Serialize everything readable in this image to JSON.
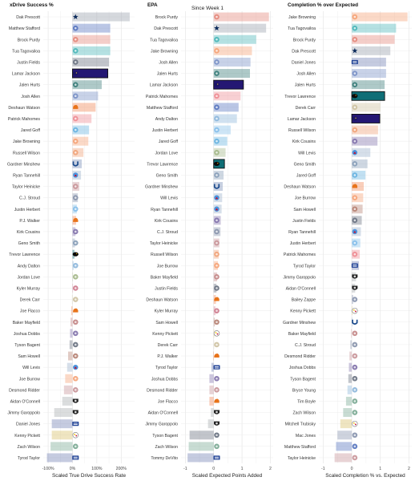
{
  "subtitle": "Since Week 1",
  "team_colors": {
    "DAL": "#9aa3ad",
    "LA": "#5b78c0",
    "SF": "#e58b7f",
    "MIA": "#4fb7b9",
    "CHI": "#6d7584",
    "BAL": "#241773",
    "PHI": "#3d7f7c",
    "BUF": "#7d94c7",
    "HOU": "#8a96ad",
    "KC": "#ee8e96",
    "DET": "#6cb4e0",
    "CIN": "#f5a57a",
    "SEA": "#8aa0b9",
    "JAX": "#0f6e76",
    "IND": "#7a8fb8",
    "TEN": "#9db3cc",
    "LAC": "#89c0ea",
    "NYJ": "#7cab95",
    "LV": "#a9adb1",
    "NO": "#cfc3a3",
    "CLE": "#f08b5a",
    "ARI": "#d08091",
    "GB": "#a7b98c",
    "WAS": "#b88577",
    "TB": "#c58a8a",
    "ATL": "#c9979b",
    "NYG": "#7583b5",
    "PIT": "#d9c16b",
    "CAR": "#8fb8dc",
    "NE": "#8b97b0",
    "DEN": "#f0a57c",
    "MIN": "#8576ad"
  },
  "logo_icons": {
    "DAL": "star-icon",
    "BAL": "raven-icon",
    "JAX": "jaguar-icon",
    "IND": "horseshoe-icon",
    "NYG": "ny-icon",
    "LV": "shield-icon",
    "TEN": "flame-icon",
    "CLE": "helmet-icon",
    "PIT": "steelers-icon"
  },
  "chart_data": [
    {
      "type": "bar",
      "title": "xDrive Success %",
      "xlabel": "Scaled True Drive Success Rate",
      "xlim": [
        -1.2,
        2.55
      ],
      "ticks": [
        -1,
        0,
        1,
        2
      ],
      "tick_labels": [
        "-100%",
        "0%",
        "100%",
        "200%"
      ],
      "highlight": "Lamar Jackson",
      "rows": [
        {
          "name": "Dak Prescott",
          "team": "DAL",
          "value": 2.35
        },
        {
          "name": "Matthew Stafford",
          "team": "LA",
          "value": 1.55
        },
        {
          "name": "Brock Purdy",
          "team": "SF",
          "value": 1.55
        },
        {
          "name": "Tua Tagovailoa",
          "team": "MIA",
          "value": 1.55
        },
        {
          "name": "Justin Fields",
          "team": "CHI",
          "value": 1.5
        },
        {
          "name": "Lamar Jackson",
          "team": "BAL",
          "value": 1.45
        },
        {
          "name": "Jalen Hurts",
          "team": "PHI",
          "value": 1.2
        },
        {
          "name": "Josh Allen",
          "team": "BUF",
          "value": 1.05
        },
        {
          "name": "Deshaun Watson",
          "team": "CLE",
          "value": 0.95
        },
        {
          "name": "Patrick Mahomes",
          "team": "KC",
          "value": 0.78
        },
        {
          "name": "Jared Goff",
          "team": "DET",
          "value": 0.68
        },
        {
          "name": "Jake Browning",
          "team": "CIN",
          "value": 0.65
        },
        {
          "name": "Russell Wilson",
          "team": "DEN",
          "value": 0.45
        },
        {
          "name": "Gardner Minshew",
          "team": "IND",
          "value": 0.38
        },
        {
          "name": "Ryan Tannehill",
          "team": "TEN",
          "value": 0.35
        },
        {
          "name": "Taylor Heinicke",
          "team": "ATL",
          "value": 0.28
        },
        {
          "name": "C.J. Stroud",
          "team": "HOU",
          "value": 0.22
        },
        {
          "name": "Justin Herbert",
          "team": "LAC",
          "value": 0.18
        },
        {
          "name": "P.J. Walker",
          "team": "CLE",
          "value": 0.15
        },
        {
          "name": "Kirk Cousins",
          "team": "MIN",
          "value": 0.12
        },
        {
          "name": "Geno Smith",
          "team": "SEA",
          "value": 0.1
        },
        {
          "name": "Trevor Lawrence",
          "team": "JAX",
          "value": 0.08
        },
        {
          "name": "Andy Dalton",
          "team": "CAR",
          "value": 0.05
        },
        {
          "name": "Jordan Love",
          "team": "GB",
          "value": 0.02
        },
        {
          "name": "Kyler Murray",
          "team": "ARI",
          "value": 0.0
        },
        {
          "name": "Derek Carr",
          "team": "NO",
          "value": -0.02
        },
        {
          "name": "Joe Flacco",
          "team": "CLE",
          "value": -0.05
        },
        {
          "name": "Baker Mayfield",
          "team": "TB",
          "value": -0.08
        },
        {
          "name": "Joshua Dobbs",
          "team": "MIN",
          "value": -0.1
        },
        {
          "name": "Tyson Bagent",
          "team": "CHI",
          "value": -0.12
        },
        {
          "name": "Sam Howell",
          "team": "WAS",
          "value": -0.18
        },
        {
          "name": "Will Levis",
          "team": "TEN",
          "value": -0.22
        },
        {
          "name": "Joe Burrow",
          "team": "CIN",
          "value": -0.3
        },
        {
          "name": "Desmond Ridder",
          "team": "ATL",
          "value": -0.35
        },
        {
          "name": "Aidan O'Connell",
          "team": "LV",
          "value": -0.42
        },
        {
          "name": "Jimmy Garoppolo",
          "team": "LV",
          "value": -0.75
        },
        {
          "name": "Daniel Jones",
          "team": "NYG",
          "value": -0.85
        },
        {
          "name": "Kenny Pickett",
          "team": "PIT",
          "value": -0.85
        },
        {
          "name": "Zach Wilson",
          "team": "NYJ",
          "value": -0.9
        },
        {
          "name": "Tyrod Taylor",
          "team": "NYG",
          "value": -1.05
        }
      ]
    },
    {
      "type": "bar",
      "title": "EPA",
      "xlabel": "Scaled Expected Points Added",
      "xlim": [
        -1.15,
        2.1
      ],
      "ticks": [
        -1,
        0,
        1,
        2
      ],
      "tick_labels": [
        "-1",
        "0",
        "1",
        "2"
      ],
      "highlight": "Lamar Jackson",
      "highlight2": "Trevor Lawrence",
      "rows": [
        {
          "name": "Brock Purdy",
          "team": "SF",
          "value": 1.95
        },
        {
          "name": "Dak Prescott",
          "team": "DAL",
          "value": 1.85
        },
        {
          "name": "Tua Tagovailoa",
          "team": "MIA",
          "value": 1.5
        },
        {
          "name": "Jake Browning",
          "team": "CIN",
          "value": 1.35
        },
        {
          "name": "Josh Allen",
          "team": "BUF",
          "value": 1.3
        },
        {
          "name": "Jalen Hurts",
          "team": "PHI",
          "value": 1.28
        },
        {
          "name": "Lamar Jackson",
          "team": "BAL",
          "value": 1.05
        },
        {
          "name": "Patrick Mahomes",
          "team": "KC",
          "value": 0.95
        },
        {
          "name": "Matthew Stafford",
          "team": "LA",
          "value": 0.88
        },
        {
          "name": "Andy Dalton",
          "team": "CAR",
          "value": 0.82
        },
        {
          "name": "Justin Herbert",
          "team": "LAC",
          "value": 0.6
        },
        {
          "name": "Jared Goff",
          "team": "DET",
          "value": 0.48
        },
        {
          "name": "Jordan Love",
          "team": "GB",
          "value": 0.42
        },
        {
          "name": "Trevor Lawrence",
          "team": "JAX",
          "value": 0.38
        },
        {
          "name": "Geno Smith",
          "team": "SEA",
          "value": 0.35
        },
        {
          "name": "Gardner Minshew",
          "team": "IND",
          "value": 0.32
        },
        {
          "name": "Will Levis",
          "team": "TEN",
          "value": 0.3
        },
        {
          "name": "Ryan Tannehill",
          "team": "TEN",
          "value": 0.28
        },
        {
          "name": "Kirk Cousins",
          "team": "MIN",
          "value": 0.25
        },
        {
          "name": "C.J. Stroud",
          "team": "HOU",
          "value": 0.24
        },
        {
          "name": "Taylor Heinicke",
          "team": "ATL",
          "value": 0.2
        },
        {
          "name": "Russell Wilson",
          "team": "DEN",
          "value": 0.18
        },
        {
          "name": "Joe Burrow",
          "team": "CIN",
          "value": 0.15
        },
        {
          "name": "Baker Mayfield",
          "team": "TB",
          "value": 0.12
        },
        {
          "name": "Justin Fields",
          "team": "CHI",
          "value": 0.1
        },
        {
          "name": "Deshaun Watson",
          "team": "CLE",
          "value": 0.08
        },
        {
          "name": "Kyler Murray",
          "team": "ARI",
          "value": 0.06
        },
        {
          "name": "Sam Howell",
          "team": "WAS",
          "value": 0.04
        },
        {
          "name": "Kenny Pickett",
          "team": "PIT",
          "value": 0.02
        },
        {
          "name": "Derek Carr",
          "team": "NO",
          "value": 0.0
        },
        {
          "name": "P.J. Walker",
          "team": "CLE",
          "value": -0.02
        },
        {
          "name": "Tyrod Taylor",
          "team": "NYG",
          "value": -0.08
        },
        {
          "name": "Joshua Dobbs",
          "team": "MIN",
          "value": -0.15
        },
        {
          "name": "Desmond Ridder",
          "team": "ATL",
          "value": -0.15
        },
        {
          "name": "Joe Flacco",
          "team": "CLE",
          "value": -0.15
        },
        {
          "name": "Aidan O'Connell",
          "team": "LV",
          "value": -0.1
        },
        {
          "name": "Jimmy Garoppolo",
          "team": "LV",
          "value": -0.2
        },
        {
          "name": "Tyson Bagent",
          "team": "CHI",
          "value": -0.85
        },
        {
          "name": "Zach Wilson",
          "team": "NYJ",
          "value": -0.88
        },
        {
          "name": "Tommy DeVito",
          "team": "NYG",
          "value": -0.92
        }
      ]
    },
    {
      "type": "bar",
      "title": "Completion % over Expected",
      "xlabel": "Scaled Completion % vs. Expected",
      "xlim": [
        -1.15,
        2.1
      ],
      "ticks": [
        -1,
        0,
        1,
        2
      ],
      "tick_labels": [
        "-1",
        "0",
        "1",
        "2"
      ],
      "highlight": "Trevor Lawrence",
      "highlight2": "Lamar Jackson",
      "rows": [
        {
          "name": "Jake Browning",
          "team": "CIN",
          "value": 1.95
        },
        {
          "name": "Tua Tagovailoa",
          "team": "MIA",
          "value": 1.55
        },
        {
          "name": "Brock Purdy",
          "team": "SF",
          "value": 1.5
        },
        {
          "name": "Dak Prescott",
          "team": "DAL",
          "value": 1.35
        },
        {
          "name": "Daniel Jones",
          "team": "NYG",
          "value": 1.2
        },
        {
          "name": "Josh Allen",
          "team": "BUF",
          "value": 1.2
        },
        {
          "name": "Jalen Hurts",
          "team": "PHI",
          "value": 1.15
        },
        {
          "name": "Trevor Lawrence",
          "team": "JAX",
          "value": 1.15
        },
        {
          "name": "Derek Carr",
          "team": "NO",
          "value": 1.0
        },
        {
          "name": "Lamar Jackson",
          "team": "BAL",
          "value": 0.98
        },
        {
          "name": "Russell Wilson",
          "team": "DEN",
          "value": 0.92
        },
        {
          "name": "Kirk Cousins",
          "team": "MIN",
          "value": 0.9
        },
        {
          "name": "Will Levis",
          "team": "TEN",
          "value": 0.65
        },
        {
          "name": "Geno Smith",
          "team": "SEA",
          "value": 0.55
        },
        {
          "name": "Jared Goff",
          "team": "DET",
          "value": 0.48
        },
        {
          "name": "Deshaun Watson",
          "team": "CLE",
          "value": 0.42
        },
        {
          "name": "Joe Burrow",
          "team": "CIN",
          "value": 0.4
        },
        {
          "name": "Sam Howell",
          "team": "WAS",
          "value": 0.38
        },
        {
          "name": "Justin Fields",
          "team": "CHI",
          "value": 0.35
        },
        {
          "name": "Ryan Tannehill",
          "team": "TEN",
          "value": 0.32
        },
        {
          "name": "Justin Herbert",
          "team": "LAC",
          "value": 0.3
        },
        {
          "name": "Patrick Mahomes",
          "team": "KC",
          "value": 0.28
        },
        {
          "name": "Tyrod Taylor",
          "team": "NYG",
          "value": 0.25
        },
        {
          "name": "Jimmy Garoppolo",
          "team": "LV",
          "value": 0.15
        },
        {
          "name": "Aidan O'Connell",
          "team": "LV",
          "value": 0.12
        },
        {
          "name": "Bailey Zappe",
          "team": "NE",
          "value": 0.05
        },
        {
          "name": "Kenny Pickett",
          "team": "PIT",
          "value": 0.02
        },
        {
          "name": "Gardner Minshew",
          "team": "IND",
          "value": 0.0
        },
        {
          "name": "Baker Mayfield",
          "team": "TB",
          "value": -0.02
        },
        {
          "name": "C.J. Stroud",
          "team": "HOU",
          "value": -0.05
        },
        {
          "name": "Desmond Ridder",
          "team": "ATL",
          "value": -0.08
        },
        {
          "name": "Joshua Dobbs",
          "team": "MIN",
          "value": -0.1
        },
        {
          "name": "Tyson Bagent",
          "team": "CHI",
          "value": -0.12
        },
        {
          "name": "Bryce Young",
          "team": "CAR",
          "value": -0.15
        },
        {
          "name": "Tim Boyle",
          "team": "NYJ",
          "value": -0.2
        },
        {
          "name": "Zach Wilson",
          "team": "NYJ",
          "value": -0.3
        },
        {
          "name": "Mitchell Trubisky",
          "team": "PIT",
          "value": -0.4
        },
        {
          "name": "Mac Jones",
          "team": "NE",
          "value": -0.5
        },
        {
          "name": "Matthew Stafford",
          "team": "LA",
          "value": -0.55
        },
        {
          "name": "Taylor Heinicke",
          "team": "ATL",
          "value": -0.6
        }
      ]
    }
  ]
}
